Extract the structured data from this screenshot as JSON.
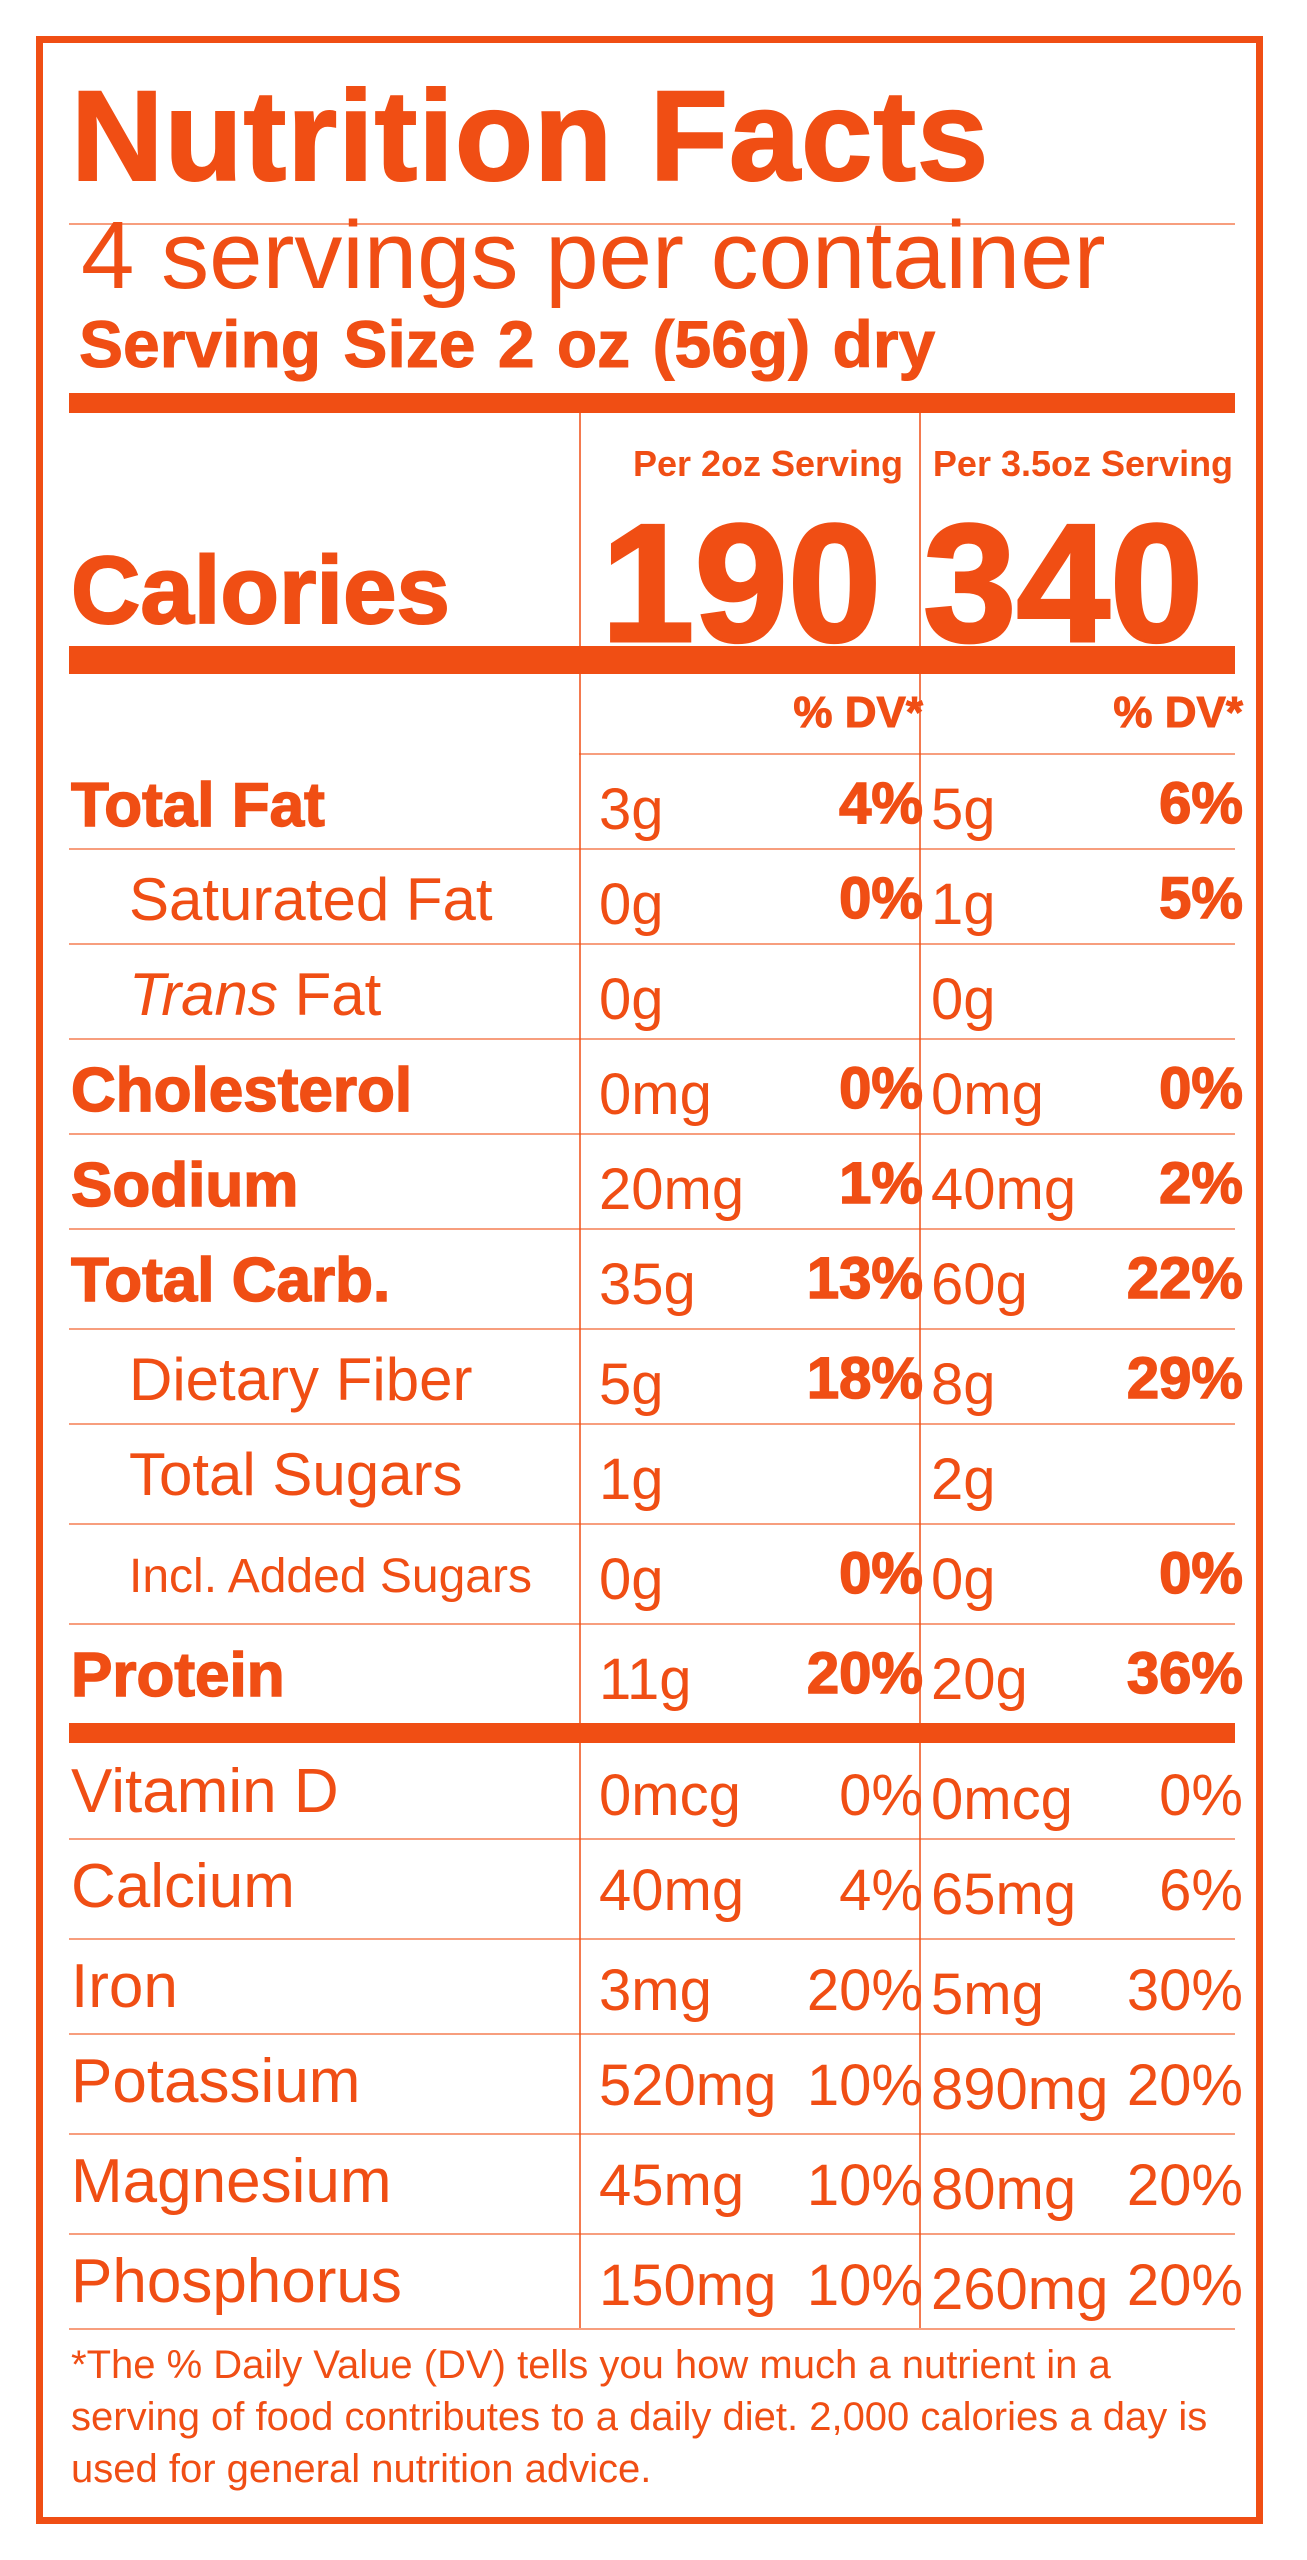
{
  "title": "Nutrition Facts",
  "servings_per_container": "4 servings per container",
  "serving_size": "Serving Size  2 oz (56g) dry",
  "columns": [
    {
      "header": "Per 2oz Serving",
      "calories": "190"
    },
    {
      "header": "Per 3.5oz Serving",
      "calories": "340"
    }
  ],
  "calories_label": "Calories",
  "dv_header": "% DV*",
  "nutrients": [
    {
      "label": "Total Fat",
      "style": "bold",
      "a_amt": "3g",
      "a_dv": "4%",
      "b_amt": "5g",
      "b_dv": "6%"
    },
    {
      "label": "Saturated Fat",
      "style": "indent",
      "a_amt": "0g",
      "a_dv": "0%",
      "b_amt": "1g",
      "b_dv": "5%"
    },
    {
      "label": "Trans Fat",
      "label_italic": "Trans",
      "label_rest": " Fat",
      "style": "indent",
      "a_amt": "0g",
      "a_dv": "",
      "b_amt": "0g",
      "b_dv": ""
    },
    {
      "label": "Cholesterol",
      "style": "bold",
      "a_amt": "0mg",
      "a_dv": "0%",
      "b_amt": "0mg",
      "b_dv": "0%"
    },
    {
      "label": "Sodium",
      "style": "bold",
      "a_amt": "20mg",
      "a_dv": "1%",
      "b_amt": "40mg",
      "b_dv": "2%"
    },
    {
      "label": "Total Carb.",
      "style": "bold",
      "a_amt": "35g",
      "a_dv": "13%",
      "b_amt": "60g",
      "b_dv": "22%"
    },
    {
      "label": "Dietary Fiber",
      "style": "indent",
      "a_amt": "5g",
      "a_dv": "18%",
      "b_amt": "8g",
      "b_dv": "29%"
    },
    {
      "label": "Total Sugars",
      "style": "indent",
      "a_amt": "1g",
      "a_dv": "",
      "b_amt": "2g",
      "b_dv": ""
    },
    {
      "label": "Incl. Added Sugars",
      "style": "indent-small",
      "a_amt": "0g",
      "a_dv": "0%",
      "b_amt": "0g",
      "b_dv": "0%"
    },
    {
      "label": "Protein",
      "style": "bold",
      "a_amt": "11g",
      "a_dv": "20%",
      "b_amt": "20g",
      "b_dv": "36%"
    }
  ],
  "minerals": [
    {
      "label": "Vitamin D",
      "a_amt": "0mcg",
      "a_dv": "0%",
      "b_amt": "0mcg",
      "b_dv": "0%"
    },
    {
      "label": "Calcium",
      "a_amt": "40mg",
      "a_dv": "4%",
      "b_amt": "65mg",
      "b_dv": "6%"
    },
    {
      "label": "Iron",
      "a_amt": "3mg",
      "a_dv": "20%",
      "b_amt": "5mg",
      "b_dv": "30%"
    },
    {
      "label": "Potassium",
      "a_amt": "520mg",
      "a_dv": "10%",
      "b_amt": "890mg",
      "b_dv": "20%"
    },
    {
      "label": "Magnesium",
      "a_amt": "45mg",
      "a_dv": "10%",
      "b_amt": "80mg",
      "b_dv": "20%"
    },
    {
      "label": "Phosphorus",
      "a_amt": "150mg",
      "a_dv": "10%",
      "b_amt": "260mg",
      "b_dv": "20%"
    }
  ],
  "footnote": "*The % Daily Value (DV) tells you how much a nutrient in a serving of food contributes to a daily diet. 2,000 calories a day is used for general nutrition advice.",
  "colors": {
    "label": "#f04e14",
    "background": "#ffffff"
  }
}
